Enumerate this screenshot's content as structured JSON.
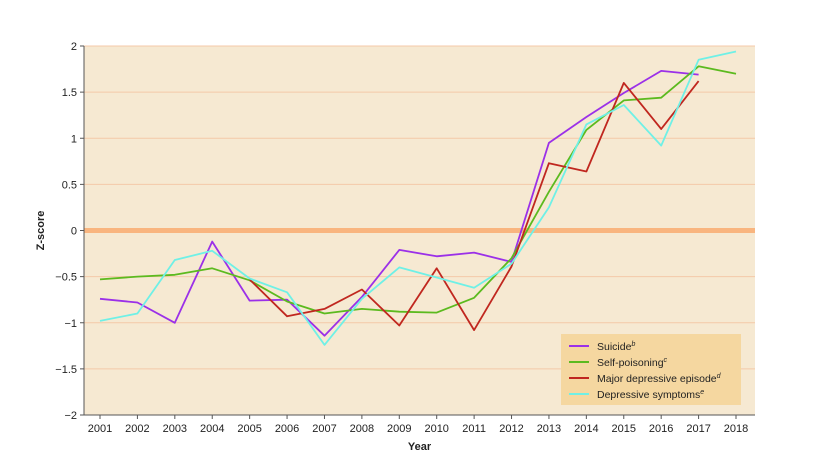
{
  "chart_data": {
    "type": "line",
    "xlabel": "Year",
    "ylabel": "Z-score",
    "ylim": [
      -2,
      2
    ],
    "yticks": [
      2,
      1.5,
      1,
      0.5,
      0,
      -0.5,
      -1,
      -1.5,
      -2
    ],
    "ytick_labels": [
      "2",
      "1.5",
      "1",
      "0.5",
      "0",
      "−0.5",
      "−1",
      "−1.5",
      "−2"
    ],
    "x": [
      2001,
      2002,
      2003,
      2004,
      2005,
      2006,
      2007,
      2008,
      2009,
      2010,
      2011,
      2012,
      2013,
      2014,
      2015,
      2016,
      2017,
      2018
    ],
    "legend_position": "bottom-right",
    "colors": {
      "plot_background": "#f6e9d2",
      "gridline": "#f4c9a8",
      "zero_line": "#f9b57f",
      "legend_background": "#f5d7a0",
      "axis": "#555555"
    },
    "series": [
      {
        "name": "Suicide",
        "superscript": "b",
        "color": "#9b30e8",
        "values": [
          -0.74,
          -0.78,
          -1.0,
          -0.12,
          -0.76,
          -0.75,
          -1.14,
          -0.72,
          -0.21,
          -0.28,
          -0.24,
          -0.34,
          0.95,
          1.23,
          1.49,
          1.73,
          1.69,
          null
        ]
      },
      {
        "name": "Self-poisoning",
        "superscript": "c",
        "color": "#5cba1f",
        "values": [
          -0.53,
          -0.5,
          -0.48,
          -0.41,
          -0.54,
          -0.77,
          -0.9,
          -0.85,
          -0.88,
          -0.89,
          -0.73,
          -0.3,
          0.42,
          1.09,
          1.41,
          1.44,
          1.78,
          1.7
        ]
      },
      {
        "name": "Major depressive episode",
        "superscript": "d",
        "color": "#c0271f",
        "values": [
          null,
          null,
          null,
          null,
          -0.53,
          -0.93,
          -0.85,
          -0.64,
          -1.03,
          -0.41,
          -1.08,
          -0.39,
          0.73,
          0.64,
          1.6,
          1.1,
          1.62,
          null
        ]
      },
      {
        "name": "Depressive symptoms",
        "superscript": "e",
        "color": "#6ff0e6",
        "values": [
          -0.98,
          -0.9,
          -0.32,
          -0.22,
          -0.52,
          -0.67,
          -1.24,
          -0.74,
          -0.4,
          -0.51,
          -0.62,
          -0.36,
          0.25,
          1.15,
          1.36,
          0.92,
          1.85,
          1.94
        ]
      }
    ]
  }
}
